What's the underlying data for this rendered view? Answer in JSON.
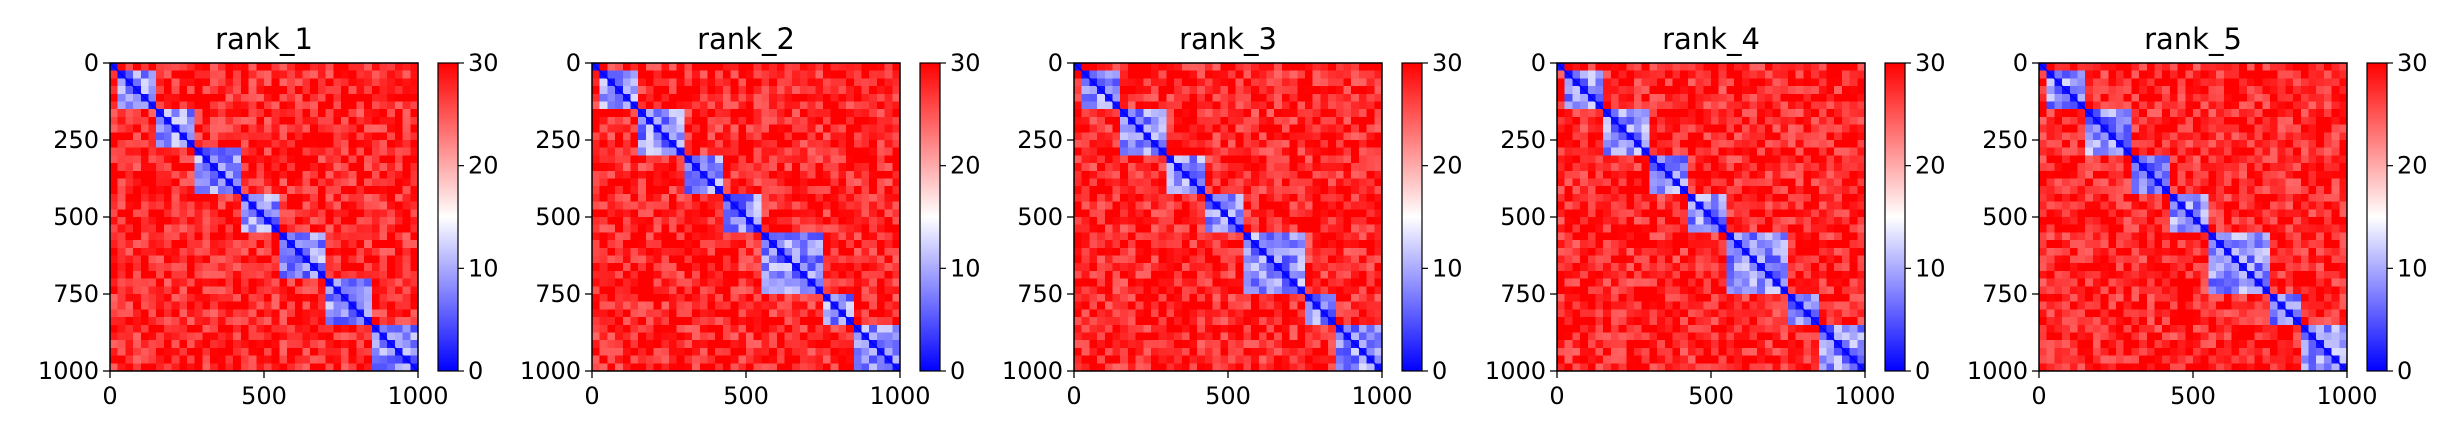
{
  "chart_data": {
    "type": "heatmap",
    "description_note": "",
    "colormap": {
      "name": "bwr",
      "low": "#0000ff",
      "mid": "#ffffff",
      "high": "#ff0000"
    },
    "clim": [
      0,
      30
    ],
    "colorbar_ticks": [
      0,
      10,
      20,
      30
    ],
    "x_ticks": [
      0,
      500,
      1000
    ],
    "y_ticks": [
      0,
      250,
      500,
      750,
      1000
    ],
    "xlim": [
      0,
      1000
    ],
    "ylim": [
      1000,
      0
    ],
    "panels": [
      {
        "title": "rank_1",
        "blocks": [
          [
            0,
            30
          ],
          [
            30,
            150
          ],
          [
            150,
            280
          ],
          [
            280,
            420
          ],
          [
            420,
            560
          ],
          [
            560,
            700
          ],
          [
            700,
            850
          ],
          [
            850,
            1000
          ]
        ]
      },
      {
        "title": "rank_2",
        "blocks": [
          [
            0,
            30
          ],
          [
            30,
            150
          ],
          [
            150,
            290
          ],
          [
            290,
            430
          ],
          [
            430,
            560
          ],
          [
            560,
            740
          ],
          [
            740,
            850
          ],
          [
            850,
            1000
          ]
        ]
      },
      {
        "title": "rank_3",
        "blocks": [
          [
            0,
            30
          ],
          [
            30,
            150
          ],
          [
            150,
            290
          ],
          [
            290,
            430
          ],
          [
            430,
            560
          ],
          [
            560,
            740
          ],
          [
            740,
            850
          ],
          [
            850,
            1000
          ]
        ]
      },
      {
        "title": "rank_4",
        "blocks": [
          [
            0,
            30
          ],
          [
            30,
            150
          ],
          [
            150,
            290
          ],
          [
            290,
            430
          ],
          [
            430,
            560
          ],
          [
            560,
            740
          ],
          [
            740,
            850
          ],
          [
            850,
            1000
          ]
        ]
      },
      {
        "title": "rank_5",
        "blocks": [
          [
            0,
            30
          ],
          [
            30,
            150
          ],
          [
            150,
            290
          ],
          [
            290,
            430
          ],
          [
            430,
            560
          ],
          [
            560,
            740
          ],
          [
            740,
            850
          ],
          [
            850,
            1000
          ]
        ]
      }
    ]
  }
}
